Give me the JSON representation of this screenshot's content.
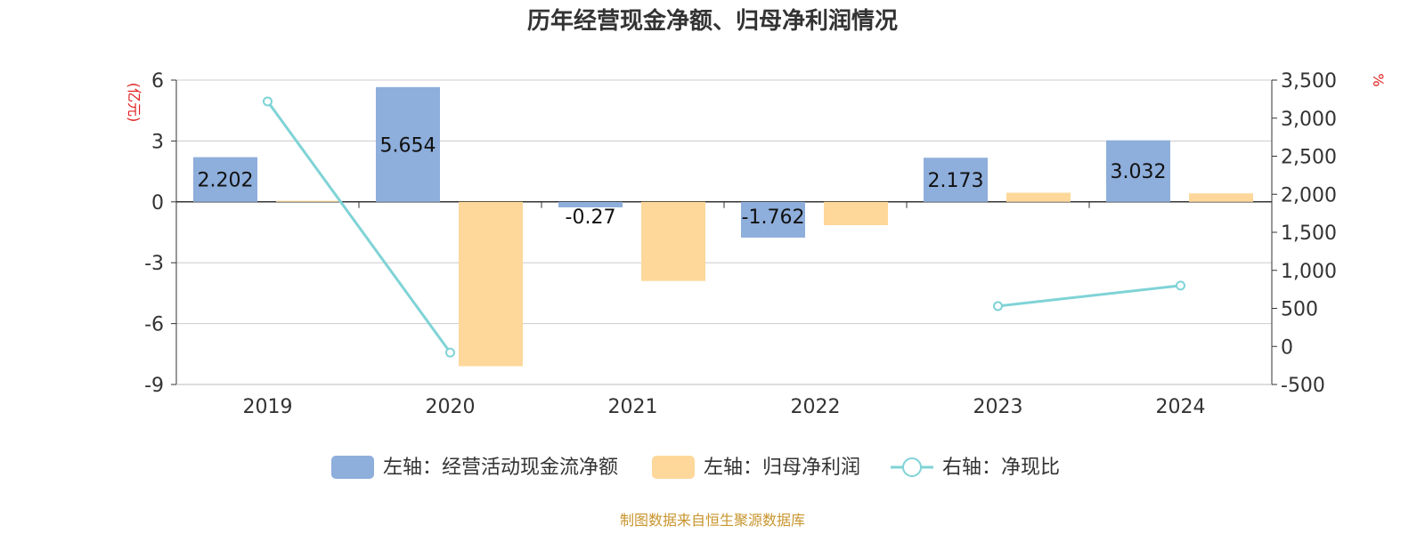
{
  "chart_data": {
    "type": "bar",
    "title": "历年经营现金净额、归母净利润情况",
    "categories": [
      "2019",
      "2020",
      "2021",
      "2022",
      "2023",
      "2024"
    ],
    "left_axis": {
      "unit_label": "(亿元)",
      "ylim": [
        -9,
        6
      ],
      "ticks": [
        "6",
        "3",
        "0",
        "-3",
        "-6",
        "-9"
      ],
      "tick_values": [
        6,
        3,
        0,
        -3,
        -6,
        -9
      ]
    },
    "right_axis": {
      "unit_label": "%",
      "ylim": [
        -500,
        3500
      ],
      "ticks": [
        "3,500",
        "3,000",
        "2,500",
        "2,000",
        "1,500",
        "1,000",
        "500",
        "0",
        "-500"
      ],
      "tick_values": [
        3500,
        3000,
        2500,
        2000,
        1500,
        1000,
        500,
        0,
        -500
      ]
    },
    "series": [
      {
        "name": "左轴：经营活动现金流净额",
        "type": "bar",
        "axis": "left",
        "color": "#8eaedb",
        "values": [
          2.202,
          5.654,
          -0.27,
          -1.762,
          2.173,
          3.032
        ],
        "labels": [
          "2.202",
          "5.654",
          "-0.27",
          "-1.762",
          "2.173",
          "3.032"
        ]
      },
      {
        "name": "左轴：归母净利润",
        "type": "bar",
        "axis": "left",
        "color": "#fdd89a",
        "values": [
          0.05,
          -8.1,
          -3.9,
          -1.15,
          0.45,
          0.42
        ]
      },
      {
        "name": "右轴：净现比",
        "type": "line",
        "axis": "right",
        "color": "#7fd3d6",
        "values": [
          3220,
          -80,
          null,
          null,
          530,
          800
        ]
      }
    ],
    "grid": true,
    "legend_position": "bottom"
  },
  "source": "制图数据来自恒生聚源数据库"
}
